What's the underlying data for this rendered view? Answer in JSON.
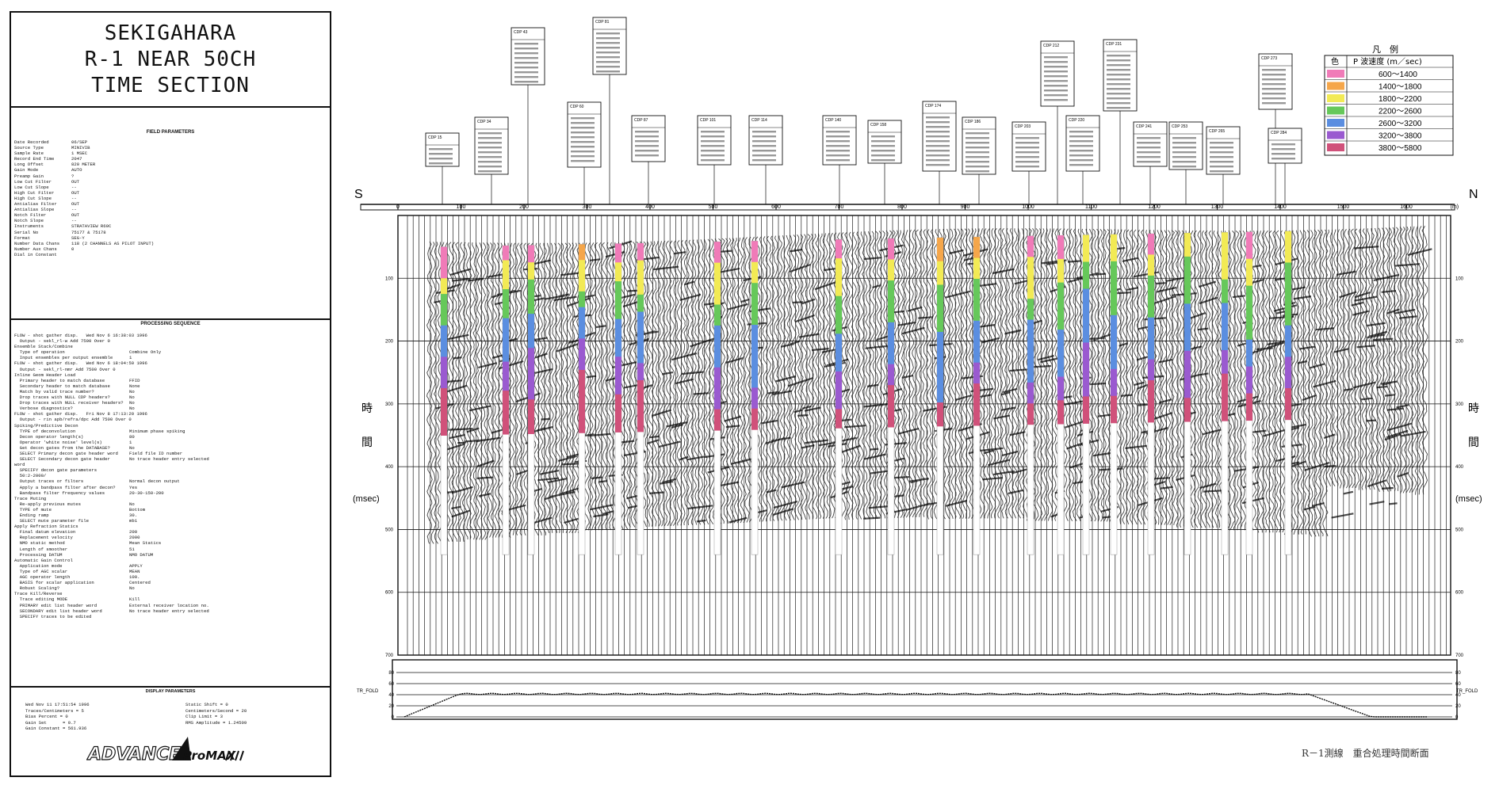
{
  "header": {
    "title_lines": [
      "SEKIGAHARA",
      "R-1 NEAR 50CH",
      "TIME SECTION"
    ]
  },
  "field_parameters": {
    "heading": "FIELD PARAMETERS",
    "rows": [
      [
        "Date Recorded",
        "06/SEP"
      ],
      [
        "Source Type",
        "MINIVIB"
      ],
      [
        "Sample Rate",
        "1 MSEC"
      ],
      [
        "Record End Time",
        "2047"
      ],
      [
        "Long Offset",
        "820 METER"
      ],
      [
        "Gain Mode",
        "AUTO"
      ],
      [
        "Preamp Gain",
        "?"
      ],
      [
        "Low Cut Filter",
        "OUT"
      ],
      [
        "Low Cut Slope",
        "--"
      ],
      [
        "High Cut Filter",
        "OUT"
      ],
      [
        "High Cut Slope",
        "--"
      ],
      [
        "Antialias Filter",
        "OUT"
      ],
      [
        "Antialias Slope",
        "--"
      ],
      [
        "Notch Filter",
        "OUT"
      ],
      [
        "Notch Slope",
        "--"
      ],
      [
        "Instruments",
        "STRATAVIEW R60C"
      ],
      [
        "Serial No",
        "75177 & 75178"
      ],
      [
        "Format",
        "SEG-Y"
      ],
      [
        "Number Data Chans",
        "118 (2 CHANNELS AS PILOT INPUT)"
      ],
      [
        "Number Aux Chans",
        "0"
      ],
      [
        "Dial in Constant",
        ""
      ]
    ]
  },
  "processing_sequence": {
    "heading": "PROCESSING SEQUENCE",
    "rows": [
      [
        "FLOW - shot gather disp.   Wed Nov 6 16:38:03 1996",
        ""
      ],
      [
        "  Output - sekl_rl-w Add 7500 Over 0",
        ""
      ],
      [
        "Ensemble Stack/Combine",
        ""
      ],
      [
        "  Type of operation",
        "Combine Only"
      ],
      [
        "  Input ensembles per output ensemble",
        "1"
      ],
      [
        "FLOW - shot gather disp.   Wed Nov 6 18:04:50 1996",
        ""
      ],
      [
        "  Output - sekl_rl-nmr Add 7500 Over 0",
        ""
      ],
      [
        "Inline Geom Header Load",
        ""
      ],
      [
        "  Primary header to match database",
        "FFID"
      ],
      [
        "  Secondary header to match database",
        "None"
      ],
      [
        "  Match by valid trace number?",
        "No"
      ],
      [
        "  Drop traces with NULL CDP headers?",
        "No"
      ],
      [
        "  Drop traces with NULL receiver headers?",
        "No"
      ],
      [
        "  Verbose diagnostics?",
        "No"
      ],
      [
        "FLOW - shot gather disp.   Fri Nov 8 17:13:20 1996",
        ""
      ],
      [
        "  Output - rin apb/refra/dpc Add 7500 Over 0",
        ""
      ],
      [
        "Spiking/Predictive Decon",
        ""
      ],
      [
        "  TYPE of deconvolution",
        "Minimum phase spiking"
      ],
      [
        "  Decon operator length(s)",
        "80"
      ],
      [
        "  Operator 'white noise' level(s)",
        "1"
      ],
      [
        "  Get decon gates from the DATABASE?",
        "No"
      ],
      [
        "  SELECT Primary decon gate header word",
        "Field file ID number"
      ],
      [
        "  SELECT Secondary decon gate header",
        "No trace header entry selected"
      ],
      [
        "word",
        ""
      ],
      [
        "  SPECIFY decon gate parameters",
        ""
      ],
      [
        "  50:2-2000/",
        ""
      ],
      [
        "  Output traces or filters",
        "Normal decon output"
      ],
      [
        "  Apply a bandpass filter after decon?",
        "Yes"
      ],
      [
        "  Bandpass filter frequency values",
        "20-30-150-200"
      ],
      [
        "Trace Muting",
        ""
      ],
      [
        "  Re-apply previous mutes",
        "No"
      ],
      [
        "  TYPE of mute",
        "Bottom"
      ],
      [
        "  Ending ramp",
        "30."
      ],
      [
        "  SELECT mute parameter file",
        "mb1"
      ],
      [
        "Apply Refraction Statics",
        ""
      ],
      [
        "  Final datum elevation",
        "200"
      ],
      [
        "  Replacement velocity",
        "2000"
      ],
      [
        "  NMO static method",
        "Mean Statics"
      ],
      [
        "  Length of smoother",
        "51"
      ],
      [
        "  Processing DATUM",
        "NMO DATUM"
      ],
      [
        "Automatic Gain Control",
        ""
      ],
      [
        "  Application mode",
        "APPLY"
      ],
      [
        "  Type of AGC scalar",
        "MEAN"
      ],
      [
        "  AGC operator length",
        "100."
      ],
      [
        "  BASIS for scalar application",
        "Centered"
      ],
      [
        "  Robust Scaling?",
        "No"
      ],
      [
        "Trace Kill/Reverse",
        ""
      ],
      [
        "  Trace editing MODE",
        "Kill"
      ],
      [
        "  PRIMARY edit list header word",
        "External receiver location no."
      ],
      [
        "  SECONDARY edit list header word",
        "No trace header entry selected"
      ],
      [
        "  SPECIFY traces to be edited",
        ""
      ]
    ]
  },
  "display_parameters": {
    "heading": "DISPLAY PARAMETERS",
    "left": [
      "Wed Nov 11 17:51:54 1996",
      "Traces/Centimeters = 5",
      "Bias Percent = 0",
      "Gain Set      = 0.7",
      "Gain Constant = 561.936"
    ],
    "right": [
      "Static Shift = 0",
      "Centimeters/Second = 20",
      "Clip Limit = 3",
      "RMS Amplitude = 1.24509"
    ],
    "logo_left": "ADVANCE",
    "logo_right": "ProMAX"
  },
  "section": {
    "left_dir": "S",
    "right_dir": "N",
    "distance_ticks": [
      "0",
      "100",
      "200",
      "300",
      "400",
      "500",
      "600",
      "700",
      "800",
      "900",
      "1000",
      "1100",
      "1200",
      "1300",
      "1400",
      "1500",
      "1600"
    ],
    "distance_unit": "(m)",
    "time_ticks": [
      "100",
      "200",
      "300",
      "400",
      "500",
      "600",
      "700"
    ],
    "time_label_chars": [
      "時",
      "間"
    ],
    "time_unit": "(msec)",
    "fold_label": "TR_FOLD",
    "fold_ticks": [
      "80",
      "60",
      "40",
      "20",
      "0"
    ],
    "caption": "R－1測線　重合処理時間断面"
  },
  "legend": {
    "title": "凡　例",
    "col1": "色",
    "col2": "P 波速度 (m／sec)",
    "entries": [
      {
        "label": "600～1400",
        "color": "#f07bb8"
      },
      {
        "label": "1400～1800",
        "color": "#f5a64a"
      },
      {
        "label": "1800～2200",
        "color": "#f2ea55"
      },
      {
        "label": "2200～2600",
        "color": "#66c85a"
      },
      {
        "label": "2600～3200",
        "color": "#5b8ee0"
      },
      {
        "label": "3200～3800",
        "color": "#9a5ad0"
      },
      {
        "label": "3800～5800",
        "color": "#d0517a"
      }
    ]
  },
  "velocity_boxes": [
    {
      "cdp": "15",
      "x": "60"
    },
    {
      "cdp": "34",
      "x": "170"
    },
    {
      "cdp": "43",
      "x": "215"
    },
    {
      "cdp": "60",
      "x": "300"
    },
    {
      "cdp": "81",
      "x": "380"
    },
    {
      "cdp": "87",
      "x": "330"
    },
    {
      "cdp": "101",
      "x": "475"
    },
    {
      "cdp": "114",
      "x": "545"
    },
    {
      "cdp": "140",
      "x": "710"
    },
    {
      "cdp": "158",
      "x": "770"
    },
    {
      "cdp": "174",
      "x": "860"
    },
    {
      "cdp": "186",
      "x": "930"
    },
    {
      "cdp": "203",
      "x": "1010"
    },
    {
      "cdp": "212",
      "x": "1050"
    },
    {
      "cdp": "220",
      "x": "1090"
    },
    {
      "cdp": "231",
      "x": "1150"
    },
    {
      "cdp": "241",
      "x": "1200"
    },
    {
      "cdp": "253",
      "x": "1240"
    },
    {
      "cdp": "265",
      "x": "1290"
    },
    {
      "cdp": "273",
      "x": "1330"
    },
    {
      "cdp": "284",
      "x": "1390"
    }
  ]
}
